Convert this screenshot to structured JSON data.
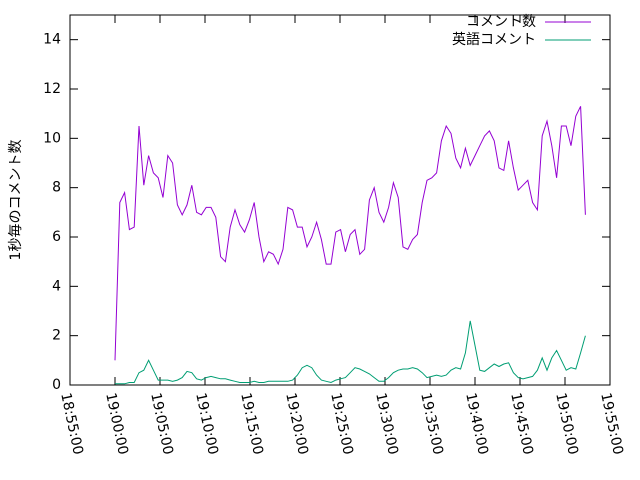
{
  "chart_data": {
    "type": "line",
    "ylabel": "1秒毎のコメント数",
    "x": [
      "19:00:00",
      "19:00:32",
      "19:01:04",
      "19:01:36",
      "19:02:08",
      "19:02:40",
      "19:03:12",
      "19:03:44",
      "19:04:16",
      "19:04:48",
      "19:05:20",
      "19:05:52",
      "19:06:24",
      "19:06:56",
      "19:07:28",
      "19:08:00",
      "19:08:32",
      "19:09:04",
      "19:09:36",
      "19:10:08",
      "19:10:40",
      "19:11:12",
      "19:11:44",
      "19:12:16",
      "19:12:48",
      "19:13:20",
      "19:13:52",
      "19:14:24",
      "19:14:56",
      "19:15:28",
      "19:16:00",
      "19:16:32",
      "19:17:04",
      "19:17:36",
      "19:18:08",
      "19:18:40",
      "19:19:12",
      "19:19:44",
      "19:20:16",
      "19:20:48",
      "19:21:20",
      "19:21:52",
      "19:22:24",
      "19:22:56",
      "19:23:28",
      "19:24:00",
      "19:24:32",
      "19:25:04",
      "19:25:36",
      "19:26:08",
      "19:26:40",
      "19:27:12",
      "19:27:44",
      "19:28:16",
      "19:28:48",
      "19:29:20",
      "19:29:52",
      "19:30:24",
      "19:30:56",
      "19:31:28",
      "19:32:00",
      "19:32:32",
      "19:33:04",
      "19:33:36",
      "19:34:08",
      "19:34:40",
      "19:35:12",
      "19:35:44",
      "19:36:16",
      "19:36:48",
      "19:37:20",
      "19:37:52",
      "19:38:24",
      "19:38:56",
      "19:39:28",
      "19:40:00",
      "19:40:32",
      "19:41:04",
      "19:41:36",
      "19:42:08",
      "19:42:40",
      "19:43:12",
      "19:43:44",
      "19:44:16",
      "19:44:48",
      "19:45:20",
      "19:45:52",
      "19:46:24",
      "19:46:56",
      "19:47:28",
      "19:48:00",
      "19:48:32",
      "19:49:04",
      "19:49:36",
      "19:50:08",
      "19:50:40",
      "19:51:12",
      "19:51:44",
      "19:52:16"
    ],
    "series": [
      {
        "name": "コメント数",
        "color": "#9400d3",
        "values": [
          1.0,
          7.4,
          7.8,
          6.3,
          6.4,
          10.5,
          8.1,
          9.3,
          8.6,
          8.4,
          7.6,
          9.3,
          9.0,
          7.3,
          6.9,
          7.3,
          8.1,
          7.0,
          6.9,
          7.2,
          7.2,
          6.8,
          5.2,
          5.0,
          6.4,
          7.1,
          6.5,
          6.2,
          6.7,
          7.4,
          6.0,
          5.0,
          5.4,
          5.3,
          4.9,
          5.5,
          7.2,
          7.1,
          6.4,
          6.4,
          5.6,
          6.0,
          6.6,
          5.9,
          4.9,
          4.9,
          6.2,
          6.3,
          5.4,
          6.1,
          6.3,
          5.3,
          5.5,
          7.5,
          8.0,
          7.0,
          6.6,
          7.2,
          8.2,
          7.6,
          5.6,
          5.5,
          5.9,
          6.1,
          7.4,
          8.3,
          8.4,
          8.6,
          9.9,
          10.5,
          10.2,
          9.2,
          8.8,
          9.6,
          8.9,
          9.3,
          9.7,
          10.1,
          10.3,
          9.9,
          8.8,
          8.7,
          9.9,
          8.8,
          7.9,
          8.1,
          8.3,
          7.4,
          7.1,
          10.1,
          10.7,
          9.7,
          8.4,
          10.5,
          10.5,
          9.7,
          10.9,
          11.3,
          6.9
        ]
      },
      {
        "name": "英語コメント",
        "color": "#009e73",
        "values": [
          0.05,
          0.05,
          0.05,
          0.1,
          0.1,
          0.5,
          0.6,
          1.0,
          0.6,
          0.2,
          0.2,
          0.2,
          0.15,
          0.2,
          0.3,
          0.55,
          0.5,
          0.25,
          0.2,
          0.3,
          0.35,
          0.3,
          0.25,
          0.25,
          0.2,
          0.15,
          0.1,
          0.1,
          0.1,
          0.15,
          0.1,
          0.1,
          0.15,
          0.15,
          0.15,
          0.15,
          0.15,
          0.2,
          0.4,
          0.7,
          0.8,
          0.7,
          0.4,
          0.2,
          0.15,
          0.1,
          0.2,
          0.25,
          0.3,
          0.5,
          0.7,
          0.65,
          0.55,
          0.45,
          0.3,
          0.15,
          0.15,
          0.3,
          0.5,
          0.6,
          0.65,
          0.65,
          0.7,
          0.65,
          0.5,
          0.3,
          0.35,
          0.4,
          0.35,
          0.4,
          0.6,
          0.7,
          0.65,
          1.3,
          2.6,
          1.6,
          0.6,
          0.55,
          0.7,
          0.85,
          0.75,
          0.85,
          0.9,
          0.5,
          0.3,
          0.25,
          0.3,
          0.35,
          0.6,
          1.1,
          0.6,
          1.1,
          1.4,
          1.0,
          0.6,
          0.7,
          0.65,
          1.3,
          2.0
        ]
      }
    ],
    "xlim": [
      "18:55:00",
      "19:55:00"
    ],
    "xticks": [
      "18:55:00",
      "19:00:00",
      "19:05:00",
      "19:10:00",
      "19:15:00",
      "19:20:00",
      "19:25:00",
      "19:30:00",
      "19:35:00",
      "19:40:00",
      "19:45:00",
      "19:50:00",
      "19:55:00"
    ],
    "ylim": [
      0,
      15
    ],
    "yticks": [
      0,
      2,
      4,
      6,
      8,
      10,
      12,
      14
    ],
    "legend": "top-right"
  }
}
